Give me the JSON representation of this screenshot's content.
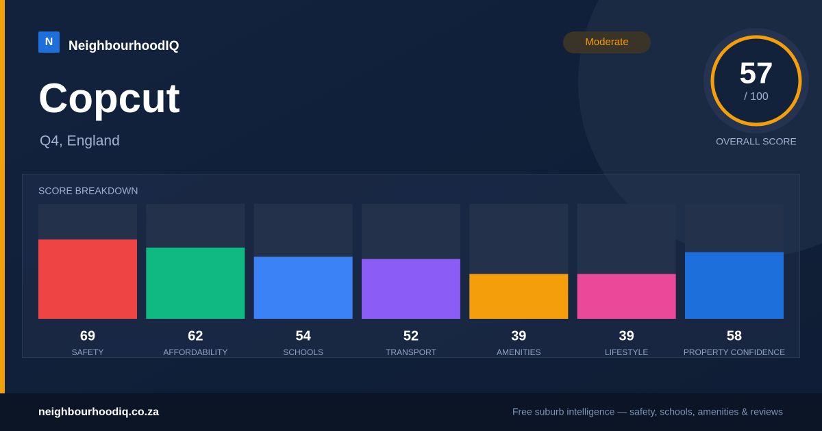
{
  "brand": {
    "logo": "N",
    "name": "NeighbourhoodIQ"
  },
  "badge": "Moderate",
  "title": "Copcut",
  "subtitle": "Q4, England",
  "score": {
    "value": 57,
    "max_label": "/ 100",
    "caption": "OVERALL SCORE"
  },
  "chart_data": {
    "type": "bar",
    "title": "SCORE BREAKDOWN",
    "categories": [
      "SAFETY",
      "AFFORDABILITY",
      "SCHOOLS",
      "TRANSPORT",
      "AMENITIES",
      "LIFESTYLE",
      "PROPERTY CONFIDENCE"
    ],
    "values": [
      69,
      62,
      54,
      52,
      39,
      39,
      58
    ],
    "colors": [
      "#ef4444",
      "#10b981",
      "#3b82f6",
      "#8b5cf6",
      "#f59e0b",
      "#ec4899",
      "#1d6fdc"
    ],
    "ylim": [
      0,
      100
    ]
  },
  "footer": {
    "url": "neighbourhoodiq.co.za",
    "tagline": "Free suburb intelligence — safety, schools, amenities & reviews"
  }
}
